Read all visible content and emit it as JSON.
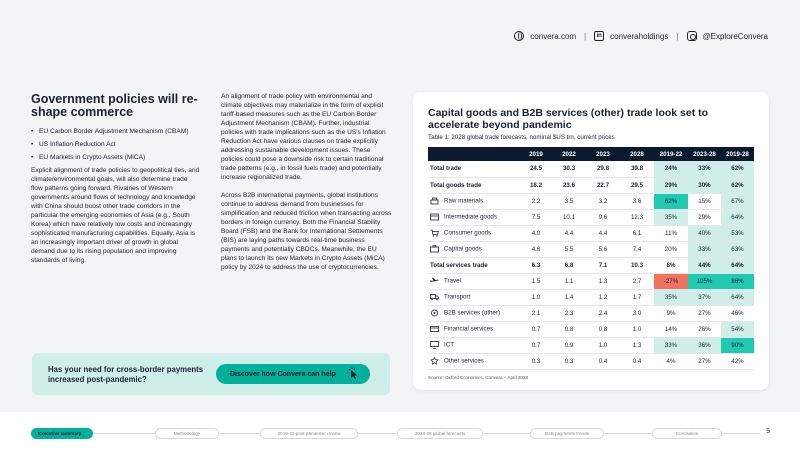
{
  "header": {
    "website": "convera.com",
    "linkedin": "converaholdings",
    "instagram": "@ExploreConvera",
    "separator": "|"
  },
  "left": {
    "title": "Government policies will re-shape commerce",
    "bullets": [
      "EU Carbon Border Adjustment Mechanism (CBAM)",
      "US Inflation Reduction Act",
      "EU Markets in Crypto Assets (MiCA)"
    ],
    "paragraph": "Explicit alignment of trade policies to geopolitical ties, and climate/environmental goals, will also determine trade flow patterns going forward. Rivalries of Western governments around flows of technology and knowledge with China should boost other trade corridors in the particular the emerging economies of Asia (e.g., South Korea) which have relatively low costs and increasingly sophisticated manufacturing capabilities. Equally, Asia is an increasingly important driver of growth in global demand due to its rising population and improving standards of living."
  },
  "middle": {
    "paragraph1": "An alignment of trade policy with environmental and climate objectives may materialize in the form of explicit tariff-based measures such as the EU Carbon Border Adjustment Mechanism (CBAM). Further, industrial policies with trade implications such as the US's Inflation Reduction Act have various clauses on trade explicitly addressing sustainable development issues. These policies could pose a downside risk to certain traditional trade patterns (e.g., in fossil fuels trade) and potentially increase regionalized trade.",
    "paragraph2": "Across B2B international payments, global institutions continue to address demand from businesses for simplification and reduced friction when transacting across borders in foreign currency. Both the Financial Stability Board (FSB) and the Bank for International Settlements (BIS) are laying paths towards real-time business payments and potentially CBDCs. Meanwhile, the EU plans to launch its new Markets in Crypto Assets (MiCA) policy by 2024 to address the use of cryptocurrencies."
  },
  "table_card": {
    "title": "Capital goods and B2B services (other) trade look set to accelerate beyond pandemic",
    "subtitle": "Table 1: 2028 global trade forecasts, nominal $US trn, current prices",
    "source": "Source: Oxford Economics, Convera – April 2023",
    "columns": [
      "",
      "2019",
      "2022",
      "2023",
      "2028",
      "2019-22",
      "2023-28",
      "2019-28"
    ],
    "rows": [
      {
        "label": "Total trade",
        "bold": true,
        "icon": "",
        "values": [
          "24.5",
          "30.3",
          "29.8",
          "39.8",
          "24%",
          "33%",
          "62%"
        ],
        "shade": [
          "",
          "",
          "",
          "",
          "#cfeee9",
          "#cfeee9",
          "#cfeee9"
        ]
      },
      {
        "label": "Total goods trade",
        "bold": true,
        "icon": "",
        "values": [
          "18.2",
          "23.6",
          "22.7",
          "29.5",
          "29%",
          "30%",
          "62%"
        ],
        "shade": [
          "",
          "",
          "",
          "",
          "#cfeee9",
          "#cfeee9",
          "#cfeee9"
        ]
      },
      {
        "label": "Raw materials",
        "bold": false,
        "icon": "raw-materials-icon",
        "values": [
          "2.2",
          "3.5",
          "3.2",
          "3.6",
          "62%",
          "15%",
          "67%"
        ],
        "shade": [
          "",
          "",
          "",
          "",
          "#20c9b2",
          "",
          "#cfeee9"
        ]
      },
      {
        "label": "Intermediate goods",
        "bold": false,
        "icon": "intermediate-goods-icon",
        "values": [
          "7.5",
          "10.1",
          "9.6",
          "12.3",
          "35%",
          "29%",
          "64%"
        ],
        "shade": [
          "",
          "",
          "",
          "",
          "#cfeee9",
          "",
          "#cfeee9"
        ]
      },
      {
        "label": "Consumer goods",
        "bold": false,
        "icon": "consumer-goods-icon",
        "values": [
          "4.0",
          "4.4",
          "4.4",
          "6.1",
          "11%",
          "40%",
          "53%"
        ],
        "shade": [
          "",
          "",
          "",
          "",
          "",
          "#cfeee9",
          "#cfeee9"
        ]
      },
      {
        "label": "Capital goods",
        "bold": false,
        "icon": "capital-goods-icon",
        "values": [
          "4.6",
          "5.5",
          "5.6",
          "7.4",
          "20%",
          "33%",
          "63%"
        ],
        "shade": [
          "",
          "",
          "",
          "",
          "",
          "#cfeee9",
          "#cfeee9"
        ]
      },
      {
        "label": "Total services trade",
        "bold": true,
        "icon": "",
        "values": [
          "6.3",
          "6.8",
          "7.1",
          "10.3",
          "8%",
          "44%",
          "64%"
        ],
        "shade": [
          "",
          "",
          "",
          "",
          "",
          "#cfeee9",
          "#cfeee9"
        ]
      },
      {
        "label": "Travel",
        "bold": false,
        "icon": "travel-icon",
        "values": [
          "1.5",
          "1.1",
          "1.3",
          "2.7",
          "-27%",
          "105%",
          "86%"
        ],
        "shade": [
          "",
          "",
          "",
          "",
          "#ef7460",
          "#20c9b2",
          "#20c9b2"
        ]
      },
      {
        "label": "Transport",
        "bold": false,
        "icon": "transport-icon",
        "values": [
          "1.0",
          "1.4",
          "1.2",
          "1.7",
          "35%",
          "37%",
          "64%"
        ],
        "shade": [
          "",
          "",
          "",
          "",
          "#cfeee9",
          "#cfeee9",
          "#cfeee9"
        ]
      },
      {
        "label": "B2B services (other)",
        "bold": false,
        "icon": "b2b-services-icon",
        "values": [
          "2.1",
          "2.3",
          "2.4",
          "3.0",
          "9%",
          "27%",
          "46%"
        ],
        "shade": [
          "",
          "",
          "",
          "",
          "",
          "",
          ""
        ]
      },
      {
        "label": "Financial services",
        "bold": false,
        "icon": "financial-services-icon",
        "values": [
          "0.7",
          "0.8",
          "0.8",
          "1.0",
          "14%",
          "26%",
          "54%"
        ],
        "shade": [
          "",
          "",
          "",
          "",
          "",
          "",
          "#cfeee9"
        ]
      },
      {
        "label": "ICT",
        "bold": false,
        "icon": "ict-icon",
        "values": [
          "0.7",
          "0.9",
          "1.0",
          "1.3",
          "33%",
          "36%",
          "90%"
        ],
        "shade": [
          "",
          "",
          "",
          "",
          "#cfeee9",
          "#cfeee9",
          "#20c9b2"
        ]
      },
      {
        "label": "Other services",
        "bold": false,
        "icon": "other-services-icon",
        "values": [
          "0.3",
          "0.3",
          "0.4",
          "0.4",
          "4%",
          "27%",
          "42%"
        ],
        "shade": [
          "",
          "",
          "",
          "",
          "",
          "",
          ""
        ]
      }
    ]
  },
  "cta": {
    "question": "Has your need for cross-border payments increased post-pandemic?",
    "button_label": "Discover how Convera can help"
  },
  "footer": {
    "nav": [
      "Executive summary",
      "Methodology",
      "2019-22 post-pandemic review",
      "2023-28 global forecasts",
      "B2B payments trends",
      "Conclusion"
    ],
    "page_number": "5"
  },
  "colors": {
    "accent": "#00b09b",
    "light_accent": "#cfeee9",
    "navy": "#0c1a2d",
    "negative": "#ef7460"
  }
}
